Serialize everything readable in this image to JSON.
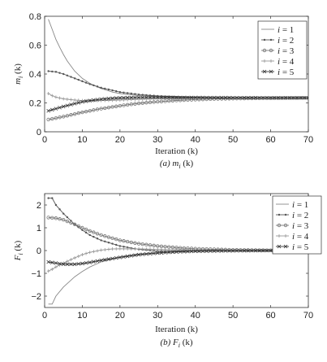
{
  "chart_data": [
    {
      "type": "line",
      "ylabel": "m_i (k)",
      "xlabel": "Iteration (k)",
      "caption": "(a) m_i (k)",
      "xlim": [
        0,
        70
      ],
      "ylim": [
        0,
        0.8
      ],
      "xticks": [
        0,
        10,
        20,
        30,
        40,
        50,
        60,
        70
      ],
      "yticks": [
        0,
        0.2,
        0.4,
        0.6,
        0.8
      ],
      "ytick_labels": [
        "0",
        "0.2",
        "0.4",
        "0.6",
        "0.8"
      ],
      "legend_position": "top-right",
      "grid": false,
      "series": [
        {
          "name": "i = 1",
          "marker": "none",
          "color": "#888888",
          "points": [
            [
              1,
              0.78
            ],
            [
              2,
              0.71
            ],
            [
              3,
              0.64
            ],
            [
              4,
              0.585
            ],
            [
              5,
              0.535
            ],
            [
              6,
              0.49
            ],
            [
              8,
              0.42
            ],
            [
              10,
              0.37
            ],
            [
              12,
              0.335
            ],
            [
              15,
              0.3
            ],
            [
              18,
              0.275
            ],
            [
              20,
              0.265
            ],
            [
              25,
              0.25
            ],
            [
              30,
              0.243
            ],
            [
              40,
              0.238
            ],
            [
              50,
              0.236
            ],
            [
              60,
              0.235
            ],
            [
              70,
              0.235
            ]
          ]
        },
        {
          "name": "i = 2",
          "marker": "dot",
          "color": "#555555",
          "points": [
            [
              1,
              0.42
            ],
            [
              3,
              0.415
            ],
            [
              5,
              0.4
            ],
            [
              8,
              0.37
            ],
            [
              10,
              0.35
            ],
            [
              12,
              0.33
            ],
            [
              15,
              0.305
            ],
            [
              20,
              0.275
            ],
            [
              25,
              0.258
            ],
            [
              30,
              0.248
            ],
            [
              35,
              0.242
            ],
            [
              40,
              0.239
            ],
            [
              50,
              0.236
            ],
            [
              60,
              0.235
            ],
            [
              70,
              0.235
            ]
          ]
        },
        {
          "name": "i = 3",
          "marker": "circle",
          "color": "#777777",
          "points": [
            [
              1,
              0.085
            ],
            [
              5,
              0.105
            ],
            [
              10,
              0.135
            ],
            [
              15,
              0.16
            ],
            [
              20,
              0.18
            ],
            [
              25,
              0.197
            ],
            [
              30,
              0.208
            ],
            [
              35,
              0.217
            ],
            [
              40,
              0.223
            ],
            [
              45,
              0.227
            ],
            [
              50,
              0.23
            ],
            [
              60,
              0.233
            ],
            [
              70,
              0.235
            ]
          ]
        },
        {
          "name": "i = 4",
          "marker": "plus",
          "color": "#999999",
          "points": [
            [
              1,
              0.265
            ],
            [
              2,
              0.25
            ],
            [
              3,
              0.24
            ],
            [
              5,
              0.228
            ],
            [
              8,
              0.22
            ],
            [
              10,
              0.216
            ],
            [
              12,
              0.215
            ],
            [
              15,
              0.216
            ],
            [
              20,
              0.22
            ],
            [
              25,
              0.225
            ],
            [
              30,
              0.229
            ],
            [
              40,
              0.233
            ],
            [
              50,
              0.234
            ],
            [
              60,
              0.235
            ],
            [
              70,
              0.235
            ]
          ]
        },
        {
          "name": "i = 5",
          "marker": "star",
          "color": "#333333",
          "points": [
            [
              1,
              0.145
            ],
            [
              3,
              0.16
            ],
            [
              5,
              0.175
            ],
            [
              8,
              0.195
            ],
            [
              10,
              0.207
            ],
            [
              12,
              0.216
            ],
            [
              15,
              0.226
            ],
            [
              18,
              0.232
            ],
            [
              20,
              0.235
            ],
            [
              25,
              0.238
            ],
            [
              30,
              0.238
            ],
            [
              40,
              0.237
            ],
            [
              50,
              0.236
            ],
            [
              60,
              0.235
            ],
            [
              70,
              0.235
            ]
          ]
        }
      ]
    },
    {
      "type": "line",
      "ylabel": "F_i (k)",
      "xlabel": "Iteration (k)",
      "caption": "(b) F_i (k)",
      "xlim": [
        0,
        70
      ],
      "ylim": [
        -2.5,
        2.5
      ],
      "xticks": [
        0,
        10,
        20,
        30,
        40,
        50,
        60,
        70
      ],
      "yticks": [
        -2,
        -1,
        0,
        1,
        2
      ],
      "ytick_labels": [
        "−2",
        "−1",
        "0",
        "1",
        "2"
      ],
      "legend_position": "top-right",
      "grid": false,
      "series": [
        {
          "name": "i = 1",
          "marker": "none",
          "color": "#888888",
          "points": [
            [
              1,
              -2.35
            ],
            [
              2,
              -2.35
            ],
            [
              3,
              -2.0
            ],
            [
              5,
              -1.6
            ],
            [
              8,
              -1.15
            ],
            [
              10,
              -0.92
            ],
            [
              12,
              -0.72
            ],
            [
              15,
              -0.5
            ],
            [
              20,
              -0.28
            ],
            [
              25,
              -0.16
            ],
            [
              30,
              -0.09
            ],
            [
              40,
              -0.03
            ],
            [
              50,
              -0.01
            ],
            [
              60,
              0
            ],
            [
              70,
              0
            ]
          ]
        },
        {
          "name": "i = 2",
          "marker": "dot",
          "color": "#555555",
          "points": [
            [
              1,
              2.3
            ],
            [
              2,
              2.3
            ],
            [
              3,
              2.0
            ],
            [
              5,
              1.62
            ],
            [
              8,
              1.15
            ],
            [
              10,
              0.9
            ],
            [
              12,
              0.68
            ],
            [
              15,
              0.45
            ],
            [
              20,
              0.2
            ],
            [
              25,
              0.05
            ],
            [
              30,
              -0.02
            ],
            [
              35,
              -0.03
            ],
            [
              40,
              -0.02
            ],
            [
              50,
              0
            ],
            [
              60,
              0
            ],
            [
              70,
              0
            ]
          ]
        },
        {
          "name": "i = 3",
          "marker": "circle",
          "color": "#777777",
          "points": [
            [
              1,
              1.45
            ],
            [
              3,
              1.42
            ],
            [
              5,
              1.35
            ],
            [
              8,
              1.15
            ],
            [
              10,
              1.0
            ],
            [
              12,
              0.86
            ],
            [
              15,
              0.68
            ],
            [
              20,
              0.45
            ],
            [
              25,
              0.3
            ],
            [
              30,
              0.2
            ],
            [
              35,
              0.13
            ],
            [
              40,
              0.08
            ],
            [
              50,
              0.03
            ],
            [
              60,
              0.01
            ],
            [
              70,
              0
            ]
          ]
        },
        {
          "name": "i = 4",
          "marker": "plus",
          "color": "#999999",
          "points": [
            [
              1,
              -0.9
            ],
            [
              2,
              -0.82
            ],
            [
              3,
              -0.72
            ],
            [
              5,
              -0.55
            ],
            [
              8,
              -0.32
            ],
            [
              10,
              -0.18
            ],
            [
              12,
              -0.08
            ],
            [
              15,
              0.02
            ],
            [
              18,
              0.07
            ],
            [
              20,
              0.08
            ],
            [
              25,
              0.07
            ],
            [
              30,
              0.05
            ],
            [
              40,
              0.02
            ],
            [
              50,
              0.01
            ],
            [
              60,
              0
            ],
            [
              70,
              0
            ]
          ]
        },
        {
          "name": "i = 5",
          "marker": "star",
          "color": "#333333",
          "points": [
            [
              1,
              -0.5
            ],
            [
              3,
              -0.55
            ],
            [
              5,
              -0.6
            ],
            [
              8,
              -0.6
            ],
            [
              10,
              -0.57
            ],
            [
              12,
              -0.52
            ],
            [
              15,
              -0.43
            ],
            [
              20,
              -0.3
            ],
            [
              25,
              -0.18
            ],
            [
              30,
              -0.11
            ],
            [
              35,
              -0.06
            ],
            [
              40,
              -0.03
            ],
            [
              50,
              -0.01
            ],
            [
              60,
              0
            ],
            [
              70,
              0
            ]
          ]
        }
      ]
    }
  ]
}
